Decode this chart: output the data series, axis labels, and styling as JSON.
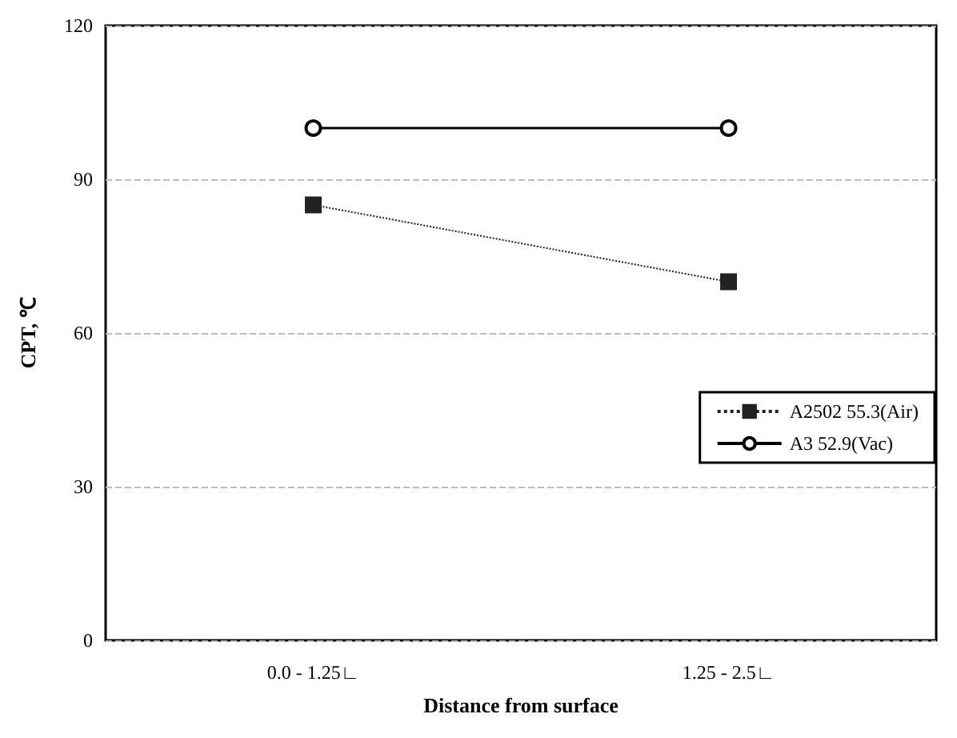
{
  "chart_data": {
    "type": "line",
    "xlabel": "Distance from surface",
    "ylabel": "CPT, ℃",
    "categories": [
      "0.0 - 1.25∟",
      "1.25 - 2.5∟"
    ],
    "series": [
      {
        "name": "A2502 55.3(Air)",
        "color": "#222222",
        "values": [
          85,
          70
        ],
        "marker": "square",
        "line_style": "dotted"
      },
      {
        "name": "A3 52.9(Vac)",
        "color": "#000000",
        "values": [
          100,
          100
        ],
        "marker": "circle",
        "line_style": "solid"
      }
    ],
    "ylim": [
      0,
      120
    ],
    "yticks": [
      0,
      30,
      60,
      90,
      120
    ],
    "grid": "y",
    "legend": "right"
  }
}
